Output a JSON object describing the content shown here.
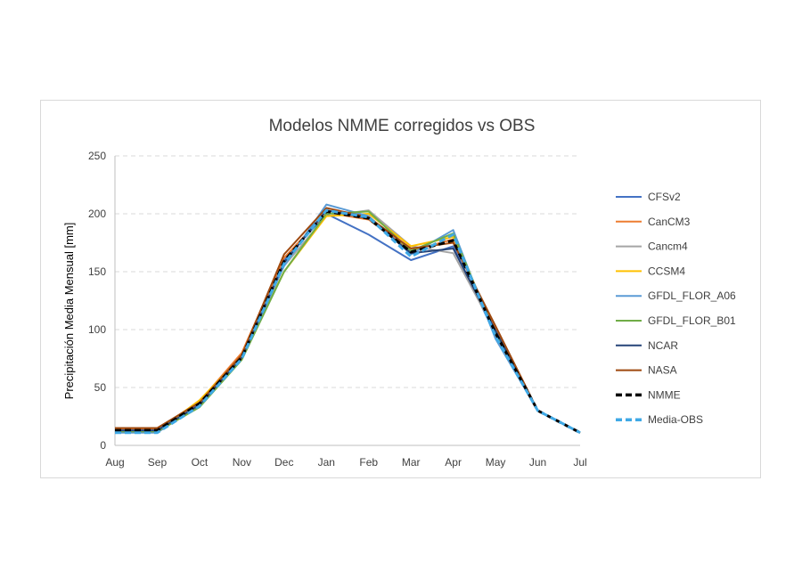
{
  "chart_data": {
    "type": "line",
    "title": "Modelos NMME corregidos vs OBS",
    "xlabel": "",
    "ylabel": "Precipitación Media Mensual [mm]",
    "categories": [
      "Aug",
      "Sep",
      "Oct",
      "Nov",
      "Dec",
      "Jan",
      "Feb",
      "Mar",
      "Apr",
      "May",
      "Jun",
      "Jul"
    ],
    "ylim": [
      0,
      250
    ],
    "yticks": [
      0,
      50,
      100,
      150,
      200,
      250
    ],
    "grid": true,
    "legend_position": "right",
    "series": [
      {
        "name": "CFSv2",
        "color": "#4472C4",
        "dashed": false,
        "values": [
          12,
          12,
          35,
          78,
          160,
          200,
          182,
          160,
          172,
          95,
          30,
          11
        ]
      },
      {
        "name": "CanCM3",
        "color": "#ED7D31",
        "dashed": false,
        "values": [
          14,
          14,
          38,
          80,
          162,
          201,
          195,
          168,
          178,
          100,
          30,
          11
        ]
      },
      {
        "name": "Cancm4",
        "color": "#A5A5A5",
        "dashed": false,
        "values": [
          13,
          13,
          36,
          76,
          155,
          198,
          203,
          172,
          166,
          98,
          30,
          11
        ]
      },
      {
        "name": "CCSM4",
        "color": "#FFC000",
        "dashed": false,
        "values": [
          12,
          12,
          39,
          77,
          150,
          198,
          200,
          172,
          180,
          97,
          30,
          11
        ]
      },
      {
        "name": "GFDL_FLOR_A06",
        "color": "#5B9BD5",
        "dashed": false,
        "values": [
          11,
          11,
          35,
          75,
          155,
          208,
          198,
          165,
          186,
          92,
          30,
          11
        ]
      },
      {
        "name": "GFDL_FLOR_B01",
        "color": "#70AD47",
        "dashed": false,
        "values": [
          12,
          12,
          33,
          74,
          150,
          200,
          202,
          168,
          183,
          96,
          30,
          11
        ]
      },
      {
        "name": "NCAR",
        "color": "#264478",
        "dashed": false,
        "values": [
          13,
          13,
          35,
          76,
          158,
          203,
          196,
          166,
          170,
          99,
          30,
          11
        ]
      },
      {
        "name": "NASA",
        "color": "#9E480E",
        "dashed": false,
        "values": [
          15,
          15,
          37,
          78,
          165,
          205,
          197,
          170,
          175,
          103,
          30,
          11
        ]
      },
      {
        "name": "NMME",
        "color": "#000000",
        "dashed": true,
        "values": [
          13,
          13,
          36,
          76,
          159,
          202,
          196,
          167,
          177,
          97,
          30,
          11
        ]
      },
      {
        "name": "Media-OBS",
        "color": "#3FA9E6",
        "dashed": true,
        "values": [
          11,
          11,
          34,
          75,
          157,
          203,
          197,
          163,
          182,
          94,
          30,
          11
        ]
      }
    ]
  }
}
